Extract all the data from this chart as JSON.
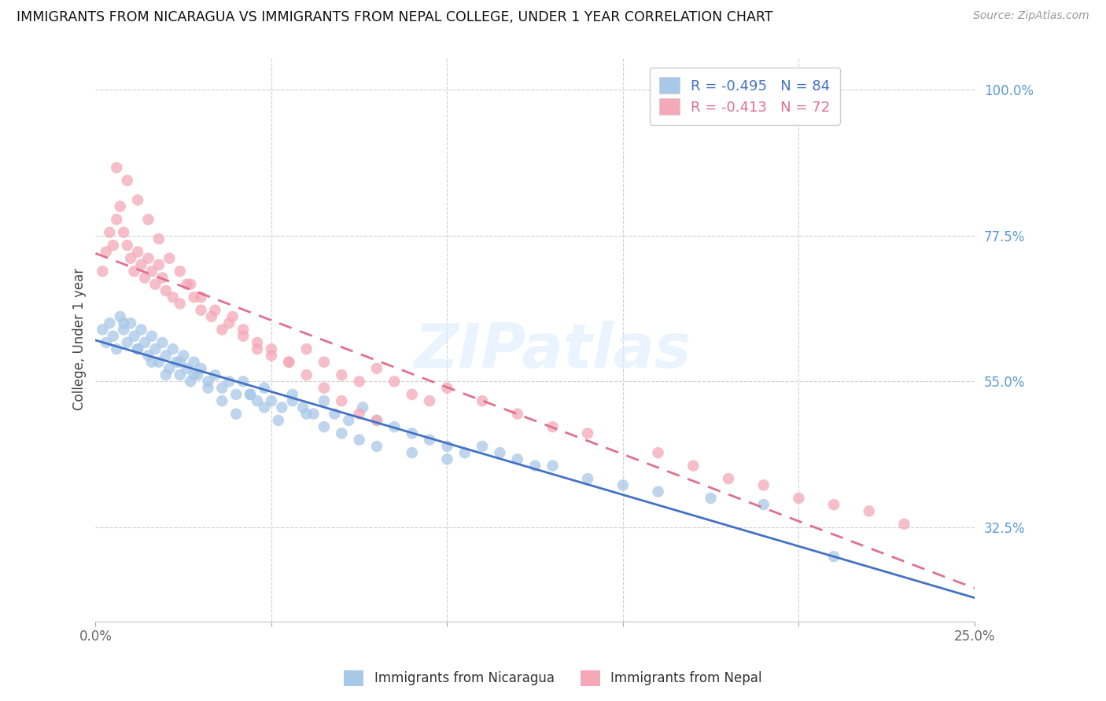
{
  "title": "IMMIGRANTS FROM NICARAGUA VS IMMIGRANTS FROM NEPAL COLLEGE, UNDER 1 YEAR CORRELATION CHART",
  "source": "Source: ZipAtlas.com",
  "ylabel": "College, Under 1 year",
  "ylabel_right_ticks": [
    "100.0%",
    "77.5%",
    "55.0%",
    "32.5%"
  ],
  "ylabel_right_vals": [
    1.0,
    0.775,
    0.55,
    0.325
  ],
  "x_min": 0.0,
  "x_max": 0.25,
  "y_min": 0.18,
  "y_max": 1.05,
  "legend_r1": "-0.495",
  "legend_n1": "84",
  "legend_r2": "-0.413",
  "legend_n2": "72",
  "color_nicaragua": "#a8c8e8",
  "color_nepal": "#f4a8b8",
  "line_color_nicaragua": "#4472c4",
  "line_color_nepal": "#e07090",
  "watermark": "ZIPatlas",
  "nicaragua_x": [
    0.002,
    0.003,
    0.004,
    0.005,
    0.006,
    0.007,
    0.008,
    0.009,
    0.01,
    0.011,
    0.012,
    0.013,
    0.014,
    0.015,
    0.016,
    0.017,
    0.018,
    0.019,
    0.02,
    0.021,
    0.022,
    0.023,
    0.024,
    0.025,
    0.026,
    0.027,
    0.028,
    0.029,
    0.03,
    0.032,
    0.034,
    0.036,
    0.038,
    0.04,
    0.042,
    0.044,
    0.046,
    0.048,
    0.05,
    0.053,
    0.056,
    0.059,
    0.062,
    0.065,
    0.068,
    0.072,
    0.076,
    0.08,
    0.085,
    0.09,
    0.095,
    0.1,
    0.105,
    0.11,
    0.115,
    0.12,
    0.125,
    0.13,
    0.14,
    0.15,
    0.008,
    0.012,
    0.016,
    0.02,
    0.024,
    0.028,
    0.032,
    0.036,
    0.04,
    0.044,
    0.048,
    0.052,
    0.056,
    0.06,
    0.065,
    0.07,
    0.075,
    0.08,
    0.09,
    0.1,
    0.16,
    0.175,
    0.19,
    0.21
  ],
  "nicaragua_y": [
    0.63,
    0.61,
    0.64,
    0.62,
    0.6,
    0.65,
    0.63,
    0.61,
    0.64,
    0.62,
    0.6,
    0.63,
    0.61,
    0.59,
    0.62,
    0.6,
    0.58,
    0.61,
    0.59,
    0.57,
    0.6,
    0.58,
    0.56,
    0.59,
    0.57,
    0.55,
    0.58,
    0.56,
    0.57,
    0.55,
    0.56,
    0.54,
    0.55,
    0.53,
    0.55,
    0.53,
    0.52,
    0.54,
    0.52,
    0.51,
    0.53,
    0.51,
    0.5,
    0.52,
    0.5,
    0.49,
    0.51,
    0.49,
    0.48,
    0.47,
    0.46,
    0.45,
    0.44,
    0.45,
    0.44,
    0.43,
    0.42,
    0.42,
    0.4,
    0.39,
    0.64,
    0.6,
    0.58,
    0.56,
    0.58,
    0.56,
    0.54,
    0.52,
    0.5,
    0.53,
    0.51,
    0.49,
    0.52,
    0.5,
    0.48,
    0.47,
    0.46,
    0.45,
    0.44,
    0.43,
    0.38,
    0.37,
    0.36,
    0.28
  ],
  "nepal_x": [
    0.002,
    0.003,
    0.004,
    0.005,
    0.006,
    0.007,
    0.008,
    0.009,
    0.01,
    0.011,
    0.012,
    0.013,
    0.014,
    0.015,
    0.016,
    0.017,
    0.018,
    0.019,
    0.02,
    0.022,
    0.024,
    0.026,
    0.028,
    0.03,
    0.033,
    0.036,
    0.039,
    0.042,
    0.046,
    0.05,
    0.055,
    0.06,
    0.065,
    0.07,
    0.075,
    0.08,
    0.085,
    0.09,
    0.095,
    0.1,
    0.006,
    0.009,
    0.012,
    0.015,
    0.018,
    0.021,
    0.024,
    0.027,
    0.03,
    0.034,
    0.038,
    0.042,
    0.046,
    0.05,
    0.055,
    0.06,
    0.065,
    0.07,
    0.075,
    0.08,
    0.11,
    0.12,
    0.13,
    0.14,
    0.16,
    0.17,
    0.18,
    0.19,
    0.2,
    0.21,
    0.22,
    0.23
  ],
  "nepal_y": [
    0.72,
    0.75,
    0.78,
    0.76,
    0.8,
    0.82,
    0.78,
    0.76,
    0.74,
    0.72,
    0.75,
    0.73,
    0.71,
    0.74,
    0.72,
    0.7,
    0.73,
    0.71,
    0.69,
    0.68,
    0.67,
    0.7,
    0.68,
    0.66,
    0.65,
    0.63,
    0.65,
    0.63,
    0.61,
    0.6,
    0.58,
    0.6,
    0.58,
    0.56,
    0.55,
    0.57,
    0.55,
    0.53,
    0.52,
    0.54,
    0.88,
    0.86,
    0.83,
    0.8,
    0.77,
    0.74,
    0.72,
    0.7,
    0.68,
    0.66,
    0.64,
    0.62,
    0.6,
    0.59,
    0.58,
    0.56,
    0.54,
    0.52,
    0.5,
    0.49,
    0.52,
    0.5,
    0.48,
    0.47,
    0.44,
    0.42,
    0.4,
    0.39,
    0.37,
    0.36,
    0.35,
    0.33
  ]
}
